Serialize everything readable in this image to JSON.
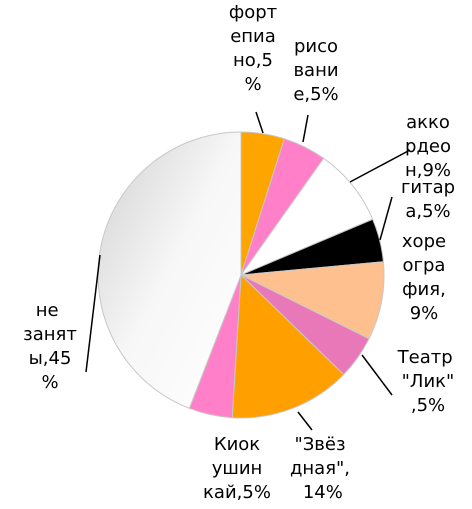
{
  "chart_data": {
    "type": "pie",
    "labels": [
      "фортепиано,5%",
      "рисование,5%",
      "аккордеон,9%",
      "гитара,5%",
      "хореография,9%",
      "Театр \"Лик\",5%",
      "\"Звёздная\", 14%",
      "Киокушинкай,5%",
      "не заняты,45%"
    ],
    "values": [
      5,
      5,
      9,
      5,
      9,
      5,
      14,
      5,
      45
    ],
    "colors": [
      "#ffa500",
      "#ff80c8",
      "#ffffff",
      "#000000",
      "#ffc090",
      "#e878b8",
      "#ffa000",
      "#ff80c8",
      "#f2f2f2"
    ]
  }
}
